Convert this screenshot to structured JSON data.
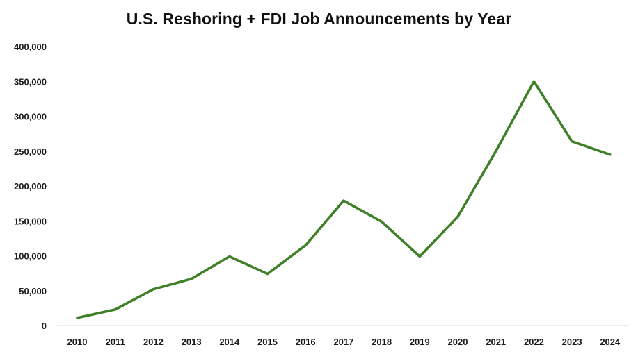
{
  "chart_data": {
    "type": "line",
    "title": "U.S. Reshoring + FDI Job Announcements by Year",
    "xlabel": "",
    "ylabel": "",
    "categories": [
      "2010",
      "2011",
      "2012",
      "2013",
      "2014",
      "2015",
      "2016",
      "2017",
      "2018",
      "2019",
      "2020",
      "2021",
      "2022",
      "2023",
      "2024"
    ],
    "series": [
      {
        "values": [
          11000,
          23000,
          52000,
          67000,
          99000,
          74000,
          115000,
          179000,
          149000,
          99000,
          156000,
          250000,
          350000,
          264000,
          245000
        ]
      }
    ],
    "ylim": [
      0,
      400000
    ],
    "yticks": [
      0,
      50000,
      100000,
      150000,
      200000,
      250000,
      300000,
      350000,
      400000
    ],
    "ytick_labels": [
      "0",
      "50,000",
      "100,000",
      "150,000",
      "200,000",
      "250,000",
      "300,000",
      "350,000",
      "400,000"
    ],
    "grid": false,
    "legend": "none",
    "colors": {
      "line": "#3f7f27"
    }
  }
}
